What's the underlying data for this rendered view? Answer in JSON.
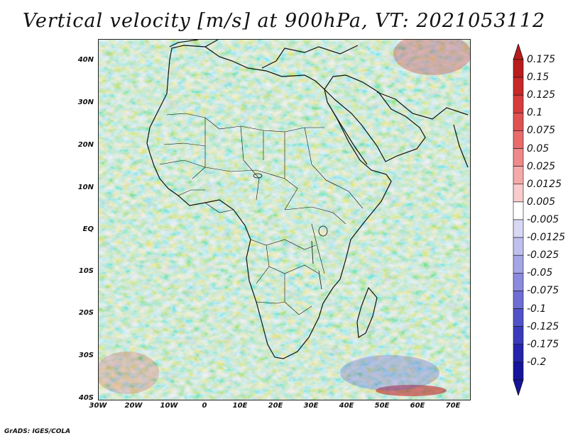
{
  "title": "Vertical velocity [m/s] at 900hPa, VT: 2021053112",
  "credit": "GrADS: IGES/COLA",
  "map": {
    "lat_labels": [
      "40N",
      "30N",
      "20N",
      "10N",
      "EQ",
      "10S",
      "20S",
      "30S",
      "40S"
    ],
    "lon_labels": [
      "30W",
      "20W",
      "10W",
      "0",
      "10E",
      "20E",
      "30E",
      "40E",
      "50E",
      "60E",
      "70E"
    ],
    "lat_range": [
      -40,
      45
    ],
    "lon_range": [
      -30,
      75
    ]
  },
  "colorbar": {
    "labels": [
      "0.175",
      "0.15",
      "0.125",
      "0.1",
      "0.075",
      "0.05",
      "0.025",
      "0.0125",
      "0.005",
      "-0.005",
      "-0.0125",
      "-0.025",
      "-0.05",
      "-0.075",
      "-0.1",
      "-0.125",
      "-0.175",
      "-0.2"
    ],
    "colors": [
      "#b81c1c",
      "#c72828",
      "#d63c3c",
      "#e05252",
      "#e86c6c",
      "#ef8a8a",
      "#f5aaaa",
      "#f9cccc",
      "#ffffff",
      "#d8d8f4",
      "#c0c0ee",
      "#a6a6e6",
      "#8a8ade",
      "#6e6ed4",
      "#5252c8",
      "#3a3abc",
      "#2424ac",
      "#14149c"
    ]
  }
}
